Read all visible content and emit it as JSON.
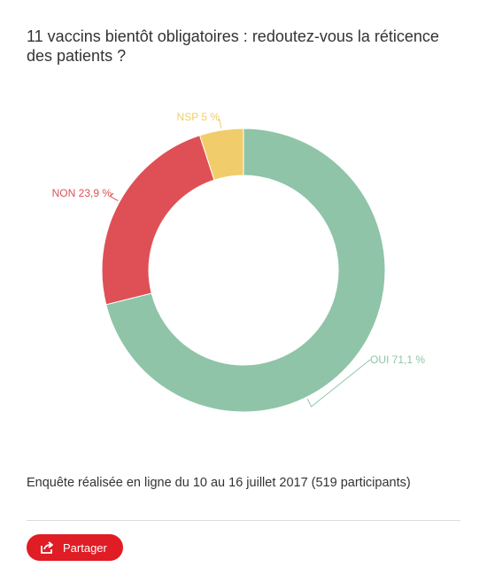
{
  "title": "11 vaccins bientôt obligatoires : redoutez-vous la réticence des patients ?",
  "chart_data": {
    "type": "pie",
    "donut": true,
    "slices": [
      {
        "label": "OUI",
        "value": 71.1,
        "display": "OUI 71,1 %",
        "color": "#8fc4a8"
      },
      {
        "label": "NON",
        "value": 23.9,
        "display": "NON 23,9 %",
        "color": "#de5055"
      },
      {
        "label": "NSP",
        "value": 5,
        "display": "NSP 5 %",
        "color": "#f0cd6a"
      }
    ]
  },
  "footer": {
    "note": "Enquête réalisée en ligne du 10 au 16 juillet 2017 (519 participants)",
    "share_label": "Partager",
    "share_icon": "share-icon"
  }
}
